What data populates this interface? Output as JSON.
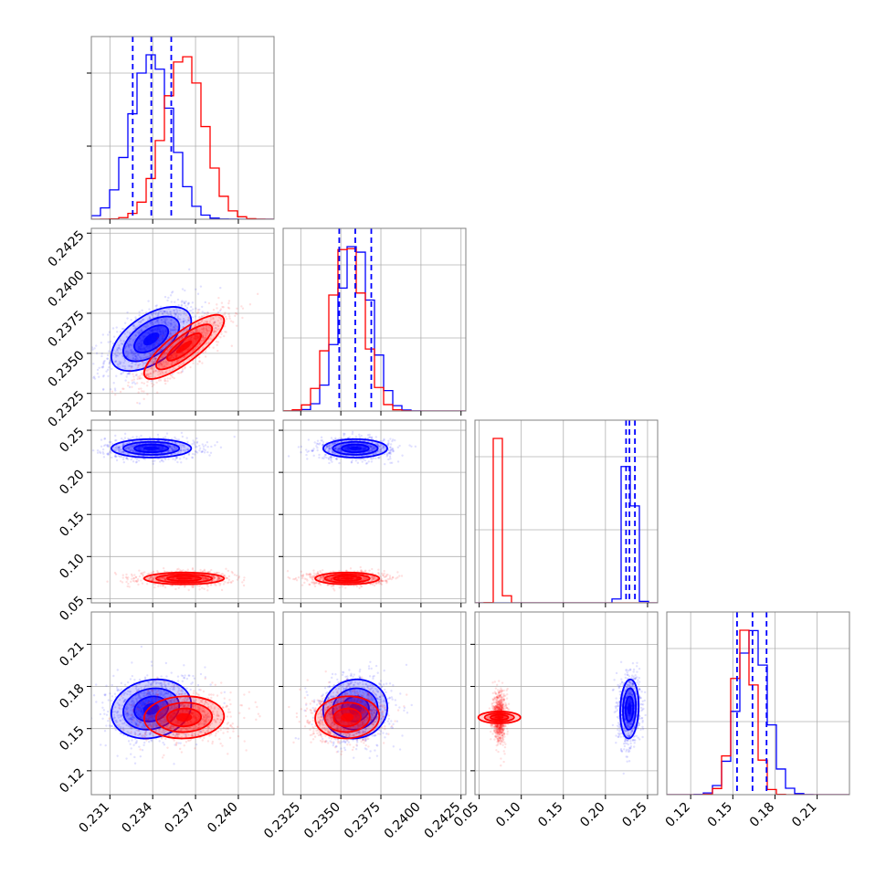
{
  "chart_data": {
    "type": "corner",
    "grid": true,
    "series": [
      {
        "color": "#0000ff",
        "params": [
          {
            "median": 0.2339,
            "q16": 0.2326,
            "q84": 0.2353,
            "sigma": 0.0014
          },
          {
            "median": 0.2359,
            "q16": 0.2349,
            "q84": 0.2369,
            "sigma": 0.001
          },
          {
            "median": 0.2285,
            "q16": 0.2245,
            "q84": 0.235,
            "sigma": 0.0055
          },
          {
            "median": 0.164,
            "q16": 0.153,
            "q84": 0.174,
            "sigma": 0.0105
          }
        ],
        "correlation": [
          [
            1.0,
            0.55,
            0.0,
            0.15
          ],
          [
            0.55,
            1.0,
            0.0,
            0.05
          ],
          [
            0.0,
            0.0,
            1.0,
            0.1
          ],
          [
            0.15,
            0.05,
            0.1,
            1.0
          ]
        ]
      },
      {
        "color": "#ff0000",
        "params": [
          {
            "median": 0.2362,
            "q16": 0.2349,
            "q84": 0.2376,
            "sigma": 0.0014
          },
          {
            "median": 0.2354,
            "q16": 0.2344,
            "q84": 0.2364,
            "sigma": 0.001
          },
          {
            "median": 0.074,
            "q16": 0.0705,
            "q84": 0.0775,
            "sigma": 0.0035
          },
          {
            "median": 0.158,
            "q16": 0.151,
            "q84": 0.165,
            "sigma": 0.0075
          }
        ],
        "correlation": [
          [
            1.0,
            0.82,
            0.0,
            0.05
          ],
          [
            0.82,
            1.0,
            0.0,
            0.05
          ],
          [
            0.0,
            0.0,
            1.0,
            0.0
          ],
          [
            0.05,
            0.05,
            0.0,
            1.0
          ]
        ]
      }
    ],
    "axes": [
      {
        "range": [
          0.2297,
          0.2425
        ],
        "ticks": [
          "0.231",
          "0.234",
          "0.237",
          "0.240"
        ]
      },
      {
        "range": [
          0.2314,
          0.2428
        ],
        "ticks": [
          "0.2325",
          "0.2350",
          "0.2375",
          "0.2400",
          "0.2425"
        ]
      },
      {
        "range": [
          0.045,
          0.262
        ],
        "ticks": [
          "0.05",
          "0.10",
          "0.15",
          "0.20",
          "0.25"
        ]
      },
      {
        "range": [
          0.103,
          0.233
        ],
        "ticks": [
          "0.12",
          "0.15",
          "0.18",
          "0.21"
        ]
      }
    ],
    "quantile_lines_color": "#0000ff",
    "quantile_lines_style": "dashed"
  }
}
